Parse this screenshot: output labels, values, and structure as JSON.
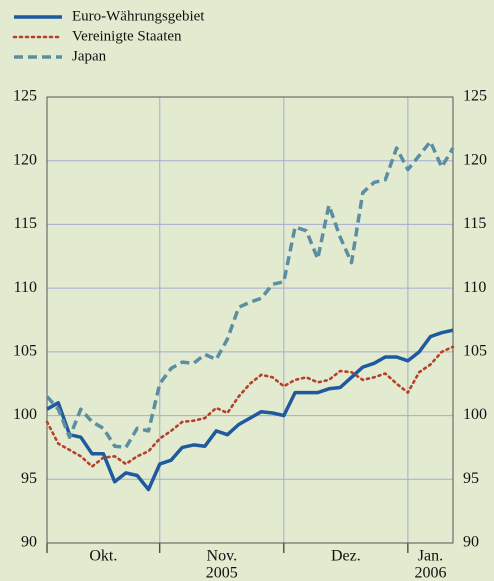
{
  "chart_data": {
    "type": "line",
    "categories": [
      "Okt.",
      null,
      null,
      null,
      null,
      null,
      null,
      null,
      null,
      null,
      "Nov.",
      null,
      null,
      null,
      null,
      null,
      null,
      null,
      null,
      null,
      null,
      "Dez.",
      null,
      null,
      null,
      null,
      null,
      null,
      null,
      null,
      null,
      null,
      "Jan.",
      null,
      null,
      null,
      null
    ],
    "category_sublabels": [
      null,
      null,
      null,
      null,
      null,
      null,
      null,
      null,
      null,
      null,
      "2005",
      null,
      null,
      null,
      null,
      null,
      null,
      null,
      null,
      null,
      null,
      null,
      null,
      null,
      null,
      null,
      null,
      null,
      null,
      null,
      null,
      null,
      "2006",
      null,
      null,
      null,
      null
    ],
    "series": [
      {
        "name": "Euro-Währungsgebiet",
        "color": "#1f5a9e",
        "style": "solid",
        "values": [
          100.5,
          101,
          98.5,
          98.3,
          97,
          97,
          94.8,
          95.5,
          95.3,
          94.2,
          96.2,
          96.5,
          97.5,
          97.7,
          97.6,
          98.8,
          98.5,
          99.3,
          99.8,
          100.3,
          100.2,
          100,
          101.8,
          101.8,
          101.8,
          102.1,
          102.2,
          103,
          103.8,
          104.1,
          104.6,
          104.6,
          104.3,
          105,
          106.2,
          106.5,
          106.7
        ]
      },
      {
        "name": "Vereinigte Staaten",
        "color": "#b5402c",
        "style": "dotted",
        "values": [
          99.5,
          97.8,
          97.3,
          96.8,
          96,
          96.7,
          96.8,
          96.2,
          96.8,
          97.2,
          98.2,
          98.8,
          99.5,
          99.6,
          99.8,
          100.6,
          100.2,
          101.5,
          102.5,
          103.2,
          103,
          102.3,
          102.8,
          103,
          102.6,
          102.8,
          103.5,
          103.4,
          102.8,
          103,
          103.3,
          102.5,
          101.8,
          103.4,
          104,
          105,
          105.4
        ]
      },
      {
        "name": "Japan",
        "color": "#5b8ea3",
        "style": "dashed",
        "values": [
          101.5,
          100.5,
          98.3,
          100.5,
          99.5,
          99,
          97.6,
          97.5,
          99,
          98.8,
          102.5,
          103.7,
          104.2,
          104.1,
          104.8,
          104.4,
          106,
          108.5,
          108.9,
          109.2,
          110.3,
          110.5,
          114.8,
          114.5,
          112.3,
          116.5,
          114,
          112,
          117.5,
          118.3,
          118.5,
          121,
          119.3,
          120.4,
          121.5,
          119.5,
          121
        ]
      }
    ],
    "ylim": [
      90,
      125
    ],
    "yticks": [
      90,
      95,
      100,
      105,
      110,
      115,
      120,
      125
    ],
    "y2lim": [
      90,
      125
    ],
    "y2ticks": [
      90,
      95,
      100,
      105,
      110,
      115,
      120,
      125
    ],
    "grid": true,
    "legend": "top-left"
  }
}
